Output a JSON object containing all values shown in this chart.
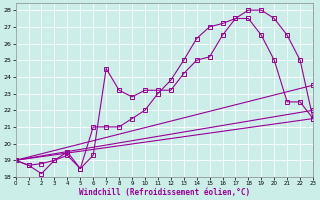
{
  "bg_color": "#cceee8",
  "line_color": "#990099",
  "xlim": [
    0,
    23
  ],
  "ylim": [
    18,
    28.4
  ],
  "xtick_vals": [
    0,
    1,
    2,
    3,
    4,
    5,
    6,
    7,
    8,
    9,
    10,
    11,
    12,
    13,
    14,
    15,
    16,
    17,
    18,
    19,
    20,
    21,
    22,
    23
  ],
  "ytick_vals": [
    18,
    19,
    20,
    21,
    22,
    23,
    24,
    25,
    26,
    27,
    28
  ],
  "xlabel": "Windchill (Refroidissement éolien,°C)",
  "curve1_x": [
    0,
    1,
    2,
    3,
    4,
    5,
    6,
    7,
    8,
    9,
    10,
    11,
    12,
    13,
    14,
    15,
    16,
    17,
    18,
    19,
    20,
    21,
    22,
    23
  ],
  "curve1_y": [
    19.0,
    18.7,
    18.8,
    19.0,
    19.3,
    18.5,
    19.3,
    24.5,
    23.2,
    22.8,
    23.2,
    23.2,
    23.2,
    24.2,
    25.0,
    25.2,
    26.5,
    27.5,
    27.5,
    26.5,
    25.0,
    22.5,
    22.5,
    21.5
  ],
  "curve2_x": [
    0,
    1,
    2,
    3,
    4,
    5,
    6,
    7,
    8,
    9,
    10,
    11,
    12,
    13,
    14,
    15,
    16,
    17,
    18,
    19,
    20,
    21,
    22,
    23
  ],
  "curve2_y": [
    19.0,
    18.7,
    18.2,
    19.0,
    19.5,
    18.5,
    21.0,
    21.0,
    21.0,
    21.5,
    22.0,
    23.0,
    23.8,
    25.0,
    26.3,
    27.0,
    27.2,
    27.5,
    28.0,
    28.0,
    27.5,
    26.5,
    25.0,
    21.5
  ],
  "line1_x": [
    0,
    23
  ],
  "line1_y": [
    19.0,
    23.5
  ],
  "line2_x": [
    0,
    23
  ],
  "line2_y": [
    19.0,
    21.5
  ],
  "line3_x": [
    0,
    23
  ],
  "line3_y": [
    19.0,
    22.0
  ]
}
